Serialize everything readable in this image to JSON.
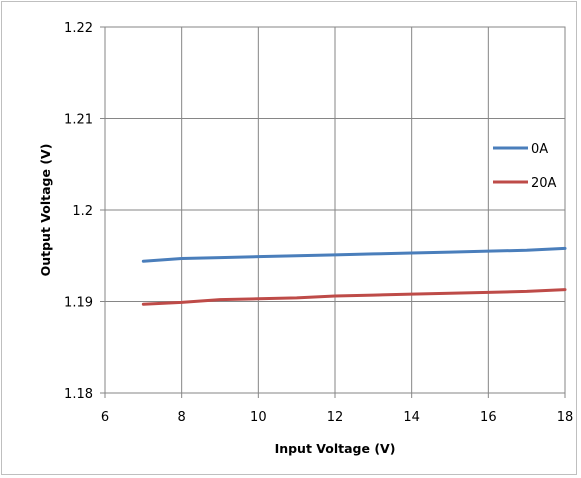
{
  "chart_data": {
    "type": "line",
    "title": "",
    "xlabel": "Input Voltage (V)",
    "ylabel": "Output Voltage (V)",
    "xlim": [
      6,
      18
    ],
    "ylim": [
      1.18,
      1.22
    ],
    "xticks": [
      6,
      8,
      10,
      12,
      14,
      16,
      18
    ],
    "yticks": [
      1.18,
      1.19,
      1.2,
      1.21,
      1.22
    ],
    "xtick_labels": [
      "6",
      "8",
      "10",
      "12",
      "14",
      "16",
      "18"
    ],
    "ytick_labels": [
      "1.18",
      "1.19",
      "1.2",
      "1.21",
      "1.22"
    ],
    "grid": true,
    "legend_position": "right",
    "series": [
      {
        "name": "0A",
        "color": "#4a7ebb",
        "x": [
          7,
          8,
          9,
          10,
          11,
          12,
          13,
          14,
          15,
          16,
          17,
          18
        ],
        "y": [
          1.1944,
          1.1947,
          1.1948,
          1.1949,
          1.195,
          1.1951,
          1.1952,
          1.1953,
          1.1954,
          1.1955,
          1.1956,
          1.1958
        ]
      },
      {
        "name": "20A",
        "color": "#be4b48",
        "x": [
          7,
          8,
          9,
          10,
          11,
          12,
          13,
          14,
          15,
          16,
          17,
          18
        ],
        "y": [
          1.1897,
          1.1899,
          1.1902,
          1.1903,
          1.1904,
          1.1906,
          1.1907,
          1.1908,
          1.1909,
          1.191,
          1.1911,
          1.1913
        ]
      }
    ]
  }
}
